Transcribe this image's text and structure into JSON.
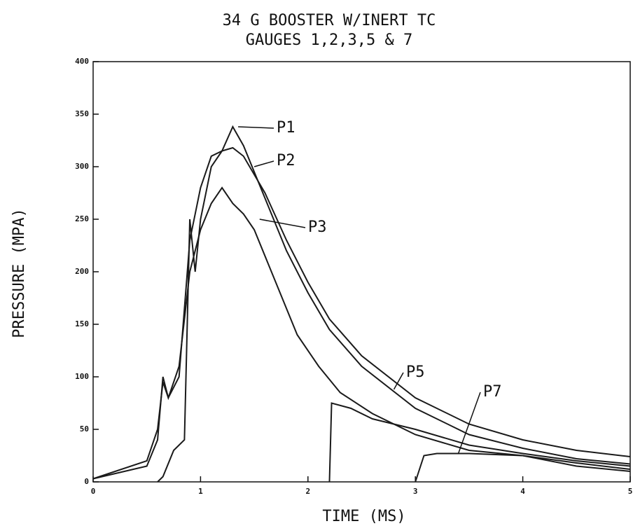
{
  "chart_data": {
    "type": "line",
    "title": "34 G BOOSTER W/INERT TC",
    "subtitle": "GAUGES 1,2,3,5 & 7",
    "xlabel": "TIME (MS)",
    "ylabel": "PRESSURE (MPA)",
    "xlim": [
      0,
      5
    ],
    "xticks": [
      0,
      1,
      2,
      3,
      4,
      5
    ],
    "ylim": [
      0,
      400
    ],
    "yticks": [
      0,
      50,
      100,
      150,
      200,
      250,
      300,
      350,
      400
    ],
    "grid": false,
    "series": [
      {
        "name": "P1",
        "color": "#1a1a1a",
        "x": [
          0,
          0.5,
          0.6,
          0.65,
          0.7,
          0.8,
          0.9,
          1.0,
          1.1,
          1.2,
          1.3,
          1.4,
          1.6,
          1.8,
          2.0,
          2.2,
          2.5,
          3.0,
          3.5,
          4.0,
          4.5,
          5.0
        ],
        "values": [
          3,
          15,
          40,
          100,
          80,
          100,
          230,
          280,
          310,
          315,
          338,
          320,
          270,
          220,
          180,
          145,
          110,
          70,
          45,
          32,
          22,
          17
        ]
      },
      {
        "name": "P2",
        "color": "#1a1a1a",
        "x": [
          0.6,
          0.65,
          0.75,
          0.85,
          0.9,
          0.95,
          1.0,
          1.1,
          1.2,
          1.3,
          1.4,
          1.6,
          1.8,
          2.0,
          2.2,
          2.5,
          3.0,
          3.5,
          4.0,
          4.5,
          5.0
        ],
        "values": [
          0,
          5,
          30,
          40,
          250,
          200,
          250,
          300,
          315,
          318,
          310,
          275,
          230,
          190,
          155,
          120,
          80,
          55,
          40,
          30,
          24
        ]
      },
      {
        "name": "P3",
        "color": "#1a1a1a",
        "x": [
          0,
          0.5,
          0.6,
          0.65,
          0.7,
          0.8,
          0.9,
          1.0,
          1.1,
          1.2,
          1.3,
          1.4,
          1.5,
          1.7,
          1.9,
          2.1,
          2.3,
          2.6,
          3.0,
          3.5,
          4.0,
          4.5,
          5.0
        ],
        "values": [
          3,
          20,
          50,
          95,
          80,
          110,
          200,
          240,
          265,
          280,
          265,
          255,
          240,
          190,
          140,
          110,
          85,
          65,
          45,
          30,
          25,
          18,
          12
        ]
      },
      {
        "name": "P5",
        "color": "#1a1a1a",
        "x": [
          2.2,
          2.22,
          2.4,
          2.6,
          3.0,
          3.5,
          4.0,
          4.5,
          5.0
        ],
        "values": [
          0,
          75,
          70,
          60,
          50,
          35,
          27,
          20,
          15
        ]
      },
      {
        "name": "P7",
        "color": "#1a1a1a",
        "x": [
          3.0,
          3.08,
          3.2,
          3.5,
          4.0,
          4.5,
          5.0
        ],
        "values": [
          0,
          25,
          27,
          27,
          25,
          15,
          10
        ]
      }
    ]
  }
}
